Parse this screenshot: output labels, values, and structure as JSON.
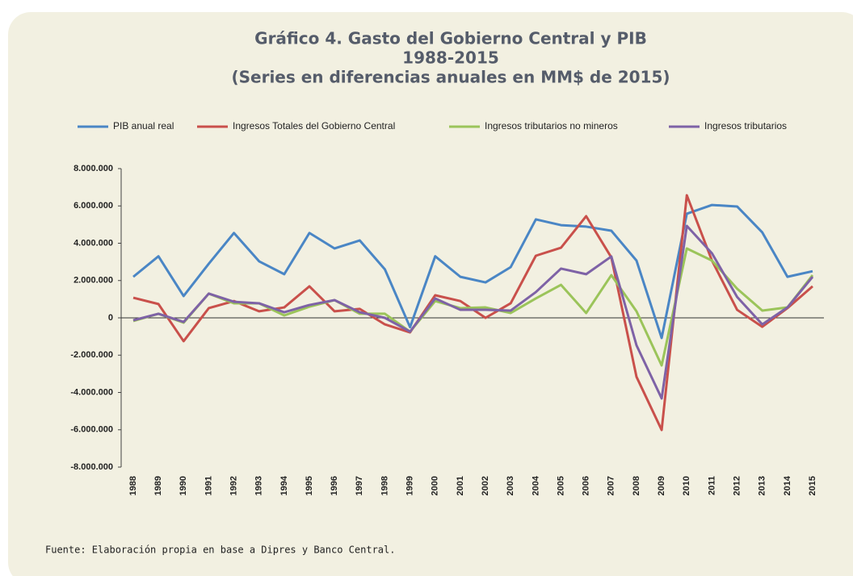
{
  "chart_data": {
    "type": "line",
    "title": [
      "Gráfico 4. Gasto del Gobierno Central y PIB",
      "1988-2015",
      "(Series en diferencias anuales en MM$ de 2015)"
    ],
    "source": "Fuente: Elaboración propia en base a Dipres y Banco Central.",
    "categories": [
      "1988",
      "1989",
      "1990",
      "1991",
      "1992",
      "1993",
      "1994",
      "1995",
      "1996",
      "1997",
      "1998",
      "1999",
      "2000",
      "2001",
      "2002",
      "2003",
      "2004",
      "2005",
      "2006",
      "2007",
      "2008",
      "2009",
      "2010",
      "2011",
      "2012",
      "2013",
      "2014",
      "2015"
    ],
    "series": [
      {
        "name": "PIB anual real",
        "color": "#4a86c5",
        "values": [
          2200000,
          3300000,
          1170000,
          2900000,
          4550000,
          3030000,
          2340000,
          4550000,
          3720000,
          4150000,
          2600000,
          -500000,
          3300000,
          2200000,
          1900000,
          2720000,
          5280000,
          4970000,
          4890000,
          4670000,
          3070000,
          -1080000,
          5580000,
          6050000,
          5970000,
          4580000,
          2200000,
          2500000
        ]
      },
      {
        "name": "Ingresos Totales del Gobierno Central",
        "color": "#c9504b",
        "values": [
          1080000,
          740000,
          -1250000,
          520000,
          900000,
          350000,
          560000,
          1690000,
          350000,
          480000,
          -350000,
          -780000,
          1210000,
          900000,
          0,
          780000,
          3330000,
          3760000,
          5450000,
          3240000,
          -3160000,
          -6010000,
          6570000,
          3070000,
          430000,
          -480000,
          520000,
          1690000
        ]
      },
      {
        "name": "Ingresos tributarios no mineros",
        "color": "#9bc45a",
        "values": [
          -170000,
          220000,
          -260000,
          1300000,
          780000,
          780000,
          130000,
          600000,
          950000,
          220000,
          220000,
          -740000,
          900000,
          520000,
          560000,
          260000,
          1040000,
          1770000,
          260000,
          2290000,
          350000,
          -2550000,
          3720000,
          3070000,
          1560000,
          390000,
          560000,
          2290000
        ]
      },
      {
        "name": "Ingresos tributarios",
        "color": "#7e62a6",
        "values": [
          -130000,
          220000,
          -220000,
          1300000,
          860000,
          780000,
          300000,
          690000,
          950000,
          300000,
          0,
          -740000,
          1040000,
          430000,
          430000,
          390000,
          1380000,
          2640000,
          2340000,
          3290000,
          -1470000,
          -4320000,
          4930000,
          3460000,
          1120000,
          -350000,
          560000,
          2200000
        ]
      }
    ],
    "ylim": [
      -8000000,
      8000000
    ],
    "yticks": [
      {
        "value": -8000000,
        "label": "-8.000.000"
      },
      {
        "value": -6000000,
        "label": "-6.000.000"
      },
      {
        "value": -4000000,
        "label": "-4.000.000"
      },
      {
        "value": -2000000,
        "label": "-2.000.000"
      },
      0,
      {
        "value": 2000000,
        "label": "2.000.000"
      },
      {
        "value": 4000000,
        "label": "4.000.000"
      },
      {
        "value": 6000000,
        "label": "6.000.000"
      },
      {
        "value": 8000000,
        "label": "8.000.000"
      }
    ],
    "grid": false
  }
}
